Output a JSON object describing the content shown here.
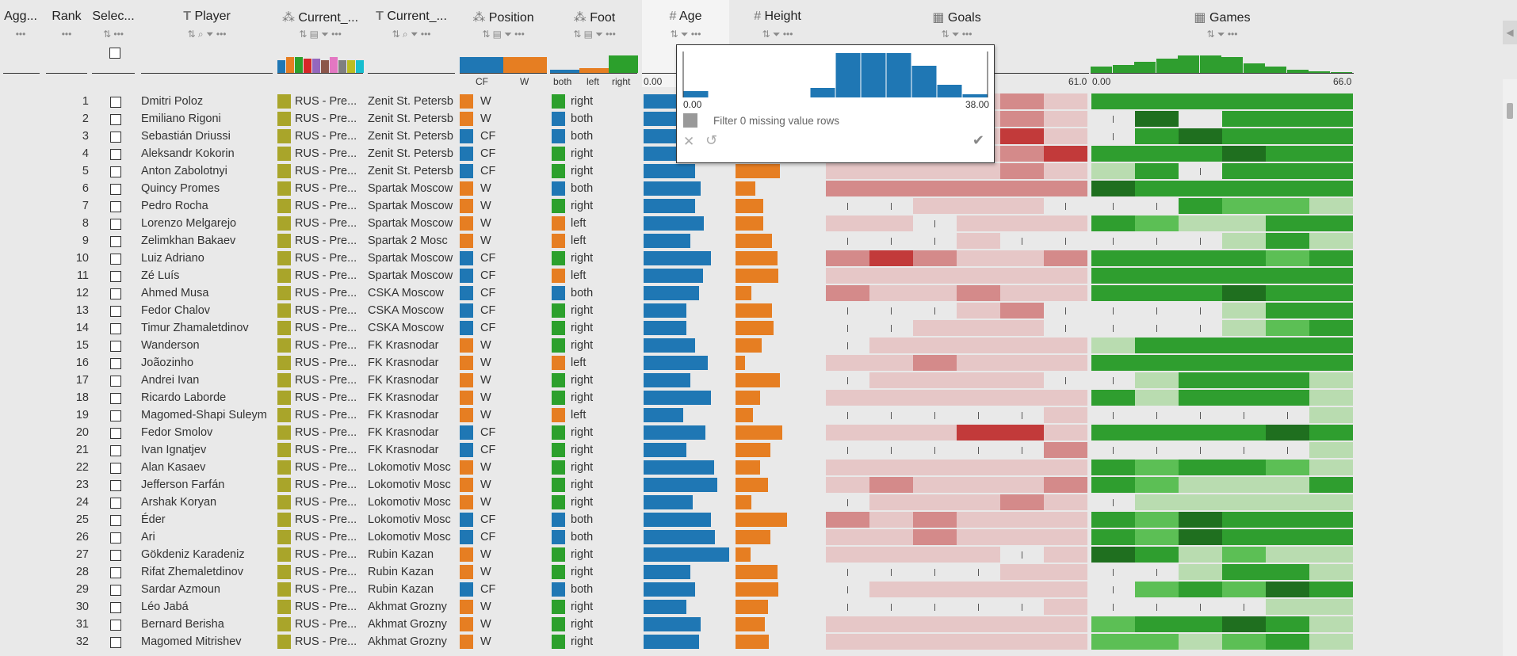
{
  "columns": {
    "agg": "Agg...",
    "rank": "Rank",
    "select": "Selec...",
    "player": "Player",
    "current1": "Current_...",
    "current2": "Current_...",
    "position": "Position",
    "foot": "Foot",
    "age": "Age",
    "height": "Height",
    "goals": "Goals",
    "games": "Games"
  },
  "summaries": {
    "position_labels": [
      "CF",
      "W"
    ],
    "foot_labels": [
      "both",
      "left",
      "right"
    ],
    "age_min": "0.00",
    "goals_max": "61.0",
    "games_min": "0.00",
    "games_max": "66.0"
  },
  "popup": {
    "min": "0.00",
    "max": "38.00",
    "filter_label": "Filter 0 missing value rows",
    "histogram": [
      2,
      0,
      0,
      0,
      0,
      3,
      14,
      14,
      14,
      10,
      4,
      1
    ]
  },
  "colors": {
    "league": "#a9a52a",
    "cf": "#1f77b4",
    "w": "#e67e22",
    "both": "#1f77b4",
    "left": "#e67e22",
    "right": "#2ca02c",
    "age_bar": "#1f77b4",
    "height_bar": "#e67e22"
  },
  "rows": [
    {
      "rank": "1",
      "player": "Dmitri Poloz",
      "league": "RUS - Pre...",
      "club": "Zenit St. Petersb",
      "pos": "W",
      "foot": "right",
      "age": 0.57,
      "height": 0.64,
      "goals": [
        1,
        1,
        1,
        1,
        2,
        1
      ],
      "games": [
        3,
        3,
        3,
        3,
        3,
        3
      ]
    },
    {
      "rank": "2",
      "player": "Emiliano Rigoni",
      "league": "RUS - Pre...",
      "club": "Zenit St. Petersb",
      "pos": "W",
      "foot": "both",
      "age": 0.55,
      "height": 0.55,
      "goals": [
        1,
        1,
        1,
        1,
        2,
        1
      ],
      "games": [
        0,
        4,
        5,
        3,
        3,
        3
      ]
    },
    {
      "rank": "3",
      "player": "Sebastián Driussi",
      "league": "RUS - Pre...",
      "club": "Zenit St. Petersb",
      "pos": "CF",
      "foot": "both",
      "age": 0.5,
      "height": 0.6,
      "goals": [
        1,
        1,
        1,
        1,
        3,
        1
      ],
      "games": [
        0,
        3,
        4,
        3,
        3,
        3
      ]
    },
    {
      "rank": "4",
      "player": "Aleksandr Kokorin",
      "league": "RUS - Pre...",
      "club": "Zenit St. Petersb",
      "pos": "CF",
      "foot": "right",
      "age": 0.64,
      "height": 0.7,
      "goals": [
        1,
        1,
        1,
        1,
        2,
        3
      ],
      "games": [
        3,
        3,
        3,
        4,
        3,
        3
      ]
    },
    {
      "rank": "5",
      "player": "Anton Zabolotnyi",
      "league": "RUS - Pre...",
      "club": "Zenit St. Petersb",
      "pos": "CF",
      "foot": "right",
      "age": 0.6,
      "height": 0.82,
      "goals": [
        1,
        1,
        1,
        1,
        2,
        1
      ],
      "games": [
        1,
        3,
        0,
        3,
        3,
        3
      ]
    },
    {
      "rank": "6",
      "player": "Quincy Promes",
      "league": "RUS - Pre...",
      "club": "Spartak Moscow",
      "pos": "W",
      "foot": "both",
      "age": 0.67,
      "height": 0.37,
      "goals": [
        2,
        2,
        2,
        2,
        2,
        2
      ],
      "games": [
        4,
        3,
        3,
        3,
        3,
        3
      ]
    },
    {
      "rank": "7",
      "player": "Pedro Rocha",
      "league": "RUS - Pre...",
      "club": "Spartak Moscow",
      "pos": "W",
      "foot": "right",
      "age": 0.6,
      "height": 0.52,
      "goals": [
        0,
        0,
        1,
        1,
        1,
        0
      ],
      "games": [
        0,
        0,
        3,
        2,
        2,
        1
      ]
    },
    {
      "rank": "8",
      "player": "Lorenzo Melgarejo",
      "league": "RUS - Pre...",
      "club": "Spartak Moscow",
      "pos": "W",
      "foot": "left",
      "age": 0.7,
      "height": 0.52,
      "goals": [
        1,
        1,
        0,
        1,
        1,
        1
      ],
      "games": [
        3,
        2,
        1,
        1,
        3,
        3
      ]
    },
    {
      "rank": "9",
      "player": "Zelimkhan Bakaev",
      "league": "RUS - Pre...",
      "club": "Spartak 2 Mosc",
      "pos": "W",
      "foot": "left",
      "age": 0.55,
      "height": 0.68,
      "goals": [
        0,
        0,
        0,
        1,
        0,
        0
      ],
      "games": [
        0,
        0,
        0,
        1,
        3,
        1
      ]
    },
    {
      "rank": "10",
      "player": "Luiz Adriano",
      "league": "RUS - Pre...",
      "club": "Spartak Moscow",
      "pos": "CF",
      "foot": "right",
      "age": 0.79,
      "height": 0.78,
      "goals": [
        2,
        3,
        2,
        1,
        1,
        2
      ],
      "games": [
        3,
        3,
        3,
        3,
        2,
        3
      ]
    },
    {
      "rank": "11",
      "player": "Zé Luís",
      "league": "RUS - Pre...",
      "club": "Spartak Moscow",
      "pos": "CF",
      "foot": "left",
      "age": 0.69,
      "height": 0.8,
      "goals": [
        1,
        1,
        1,
        1,
        1,
        1
      ],
      "games": [
        3,
        3,
        3,
        3,
        3,
        3
      ]
    },
    {
      "rank": "12",
      "player": "Ahmed Musa",
      "league": "RUS - Pre...",
      "club": "CSKA Moscow",
      "pos": "CF",
      "foot": "both",
      "age": 0.65,
      "height": 0.3,
      "goals": [
        2,
        1,
        1,
        2,
        1,
        1
      ],
      "games": [
        3,
        3,
        3,
        4,
        3,
        3
      ]
    },
    {
      "rank": "13",
      "player": "Fedor Chalov",
      "league": "RUS - Pre...",
      "club": "CSKA Moscow",
      "pos": "CF",
      "foot": "right",
      "age": 0.5,
      "height": 0.68,
      "goals": [
        0,
        0,
        0,
        1,
        2,
        0
      ],
      "games": [
        0,
        0,
        0,
        1,
        3,
        3
      ]
    },
    {
      "rank": "14",
      "player": "Timur Zhamaletdinov",
      "league": "RUS - Pre...",
      "club": "CSKA Moscow",
      "pos": "CF",
      "foot": "right",
      "age": 0.5,
      "height": 0.7,
      "goals": [
        0,
        0,
        1,
        1,
        1,
        0
      ],
      "games": [
        0,
        0,
        0,
        1,
        2,
        3
      ]
    },
    {
      "rank": "15",
      "player": "Wanderson",
      "league": "RUS - Pre...",
      "club": "FK Krasnodar",
      "pos": "W",
      "foot": "right",
      "age": 0.6,
      "height": 0.48,
      "goals": [
        0,
        1,
        1,
        1,
        1,
        1
      ],
      "games": [
        1,
        3,
        3,
        3,
        3,
        3
      ]
    },
    {
      "rank": "16",
      "player": "Joãozinho",
      "league": "RUS - Pre...",
      "club": "FK Krasnodar",
      "pos": "W",
      "foot": "left",
      "age": 0.75,
      "height": 0.18,
      "goals": [
        1,
        1,
        2,
        1,
        1,
        1
      ],
      "games": [
        3,
        3,
        3,
        3,
        3,
        3
      ]
    },
    {
      "rank": "17",
      "player": "Andrei Ivan",
      "league": "RUS - Pre...",
      "club": "FK Krasnodar",
      "pos": "W",
      "foot": "right",
      "age": 0.55,
      "height": 0.82,
      "goals": [
        0,
        1,
        1,
        1,
        1,
        0
      ],
      "games": [
        0,
        1,
        3,
        3,
        3,
        1
      ]
    },
    {
      "rank": "18",
      "player": "Ricardo Laborde",
      "league": "RUS - Pre...",
      "club": "FK Krasnodar",
      "pos": "W",
      "foot": "right",
      "age": 0.79,
      "height": 0.45,
      "goals": [
        1,
        1,
        1,
        1,
        1,
        1
      ],
      "games": [
        3,
        1,
        3,
        3,
        3,
        1
      ]
    },
    {
      "rank": "19",
      "player": "Magomed-Shapi Suleym",
      "league": "RUS - Pre...",
      "club": "FK Krasnodar",
      "pos": "W",
      "foot": "left",
      "age": 0.46,
      "height": 0.32,
      "goals": [
        0,
        0,
        0,
        0,
        0,
        1
      ],
      "games": [
        0,
        0,
        0,
        0,
        0,
        1
      ]
    },
    {
      "rank": "20",
      "player": "Fedor Smolov",
      "league": "RUS - Pre...",
      "club": "FK Krasnodar",
      "pos": "CF",
      "foot": "right",
      "age": 0.72,
      "height": 0.87,
      "goals": [
        1,
        1,
        1,
        3,
        3,
        1
      ],
      "games": [
        3,
        3,
        3,
        3,
        4,
        3
      ]
    },
    {
      "rank": "21",
      "player": "Ivan Ignatjev",
      "league": "RUS - Pre...",
      "club": "FK Krasnodar",
      "pos": "CF",
      "foot": "right",
      "age": 0.5,
      "height": 0.65,
      "goals": [
        0,
        0,
        0,
        0,
        0,
        2
      ],
      "games": [
        0,
        0,
        0,
        0,
        0,
        1
      ]
    },
    {
      "rank": "22",
      "player": "Alan Kasaev",
      "league": "RUS - Pre...",
      "club": "Lokomotiv Mosc",
      "pos": "W",
      "foot": "right",
      "age": 0.82,
      "height": 0.45,
      "goals": [
        1,
        1,
        1,
        1,
        1,
        1
      ],
      "games": [
        3,
        2,
        3,
        3,
        2,
        1
      ]
    },
    {
      "rank": "23",
      "player": "Jefferson Farfán",
      "league": "RUS - Pre...",
      "club": "Lokomotiv Mosc",
      "pos": "W",
      "foot": "right",
      "age": 0.86,
      "height": 0.6,
      "goals": [
        1,
        2,
        1,
        1,
        1,
        2
      ],
      "games": [
        3,
        2,
        1,
        1,
        1,
        3
      ]
    },
    {
      "rank": "24",
      "player": "Arshak Koryan",
      "league": "RUS - Pre...",
      "club": "Lokomotiv Mosc",
      "pos": "W",
      "foot": "right",
      "age": 0.57,
      "height": 0.3,
      "goals": [
        0,
        1,
        1,
        1,
        2,
        1
      ],
      "games": [
        0,
        1,
        1,
        1,
        1,
        1
      ]
    },
    {
      "rank": "25",
      "player": "Éder",
      "league": "RUS - Pre...",
      "club": "Lokomotiv Mosc",
      "pos": "CF",
      "foot": "both",
      "age": 0.79,
      "height": 0.95,
      "goals": [
        2,
        1,
        2,
        1,
        1,
        1
      ],
      "games": [
        3,
        2,
        4,
        3,
        3,
        3
      ]
    },
    {
      "rank": "26",
      "player": "Ari",
      "league": "RUS - Pre...",
      "club": "Lokomotiv Mosc",
      "pos": "CF",
      "foot": "both",
      "age": 0.83,
      "height": 0.65,
      "goals": [
        1,
        1,
        2,
        1,
        1,
        1
      ],
      "games": [
        3,
        2,
        4,
        3,
        3,
        3
      ]
    },
    {
      "rank": "27",
      "player": "Gökdeniz Karadeniz",
      "league": "RUS - Pre...",
      "club": "Rubin Kazan",
      "pos": "W",
      "foot": "right",
      "age": 1.0,
      "height": 0.28,
      "goals": [
        1,
        1,
        1,
        1,
        0,
        1
      ],
      "games": [
        4,
        3,
        1,
        2,
        1,
        1
      ]
    },
    {
      "rank": "28",
      "player": "Rifat Zhemaletdinov",
      "league": "RUS - Pre...",
      "club": "Rubin Kazan",
      "pos": "W",
      "foot": "right",
      "age": 0.55,
      "height": 0.78,
      "goals": [
        0,
        0,
        0,
        0,
        1,
        1
      ],
      "games": [
        0,
        0,
        1,
        3,
        3,
        1
      ]
    },
    {
      "rank": "29",
      "player": "Sardar Azmoun",
      "league": "RUS - Pre...",
      "club": "Rubin Kazan",
      "pos": "CF",
      "foot": "both",
      "age": 0.6,
      "height": 0.8,
      "goals": [
        0,
        1,
        1,
        1,
        1,
        1
      ],
      "games": [
        0,
        2,
        3,
        2,
        4,
        3
      ]
    },
    {
      "rank": "30",
      "player": "Léo Jabá",
      "league": "RUS - Pre...",
      "club": "Akhmat Grozny",
      "pos": "W",
      "foot": "right",
      "age": 0.5,
      "height": 0.6,
      "goals": [
        0,
        0,
        0,
        0,
        0,
        1
      ],
      "games": [
        0,
        0,
        0,
        0,
        1,
        1
      ]
    },
    {
      "rank": "31",
      "player": "Bernard Berisha",
      "league": "RUS - Pre...",
      "club": "Akhmat Grozny",
      "pos": "W",
      "foot": "right",
      "age": 0.67,
      "height": 0.55,
      "goals": [
        1,
        1,
        1,
        1,
        1,
        1
      ],
      "games": [
        2,
        3,
        3,
        4,
        3,
        1
      ]
    },
    {
      "rank": "32",
      "player": "Magomed Mitrishev",
      "league": "RUS - Pre...",
      "club": "Akhmat Grozny",
      "pos": "W",
      "foot": "right",
      "age": 0.65,
      "height": 0.62,
      "goals": [
        1,
        1,
        1,
        1,
        1,
        1
      ],
      "games": [
        2,
        2,
        1,
        2,
        3,
        1
      ]
    }
  ]
}
